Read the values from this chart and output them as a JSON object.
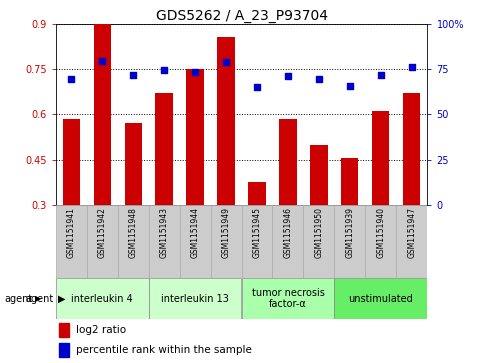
{
  "title": "GDS5262 / A_23_P93704",
  "samples": [
    "GSM1151941",
    "GSM1151942",
    "GSM1151948",
    "GSM1151943",
    "GSM1151944",
    "GSM1151949",
    "GSM1151945",
    "GSM1151946",
    "GSM1151950",
    "GSM1151939",
    "GSM1151940",
    "GSM1151947"
  ],
  "log2_ratio": [
    0.585,
    0.9,
    0.57,
    0.67,
    0.75,
    0.855,
    0.375,
    0.585,
    0.5,
    0.455,
    0.61,
    0.67
  ],
  "percentile": [
    0.695,
    0.795,
    0.715,
    0.745,
    0.735,
    0.79,
    0.65,
    0.71,
    0.695,
    0.655,
    0.715,
    0.76
  ],
  "bar_color": "#cc0000",
  "dot_color": "#0000cc",
  "ylim_left": [
    0.3,
    0.9
  ],
  "ylim_right": [
    0.0,
    1.0
  ],
  "yticks_left": [
    0.3,
    0.45,
    0.6,
    0.75,
    0.9
  ],
  "yticks_right": [
    0.0,
    0.25,
    0.5,
    0.75,
    1.0
  ],
  "ytick_labels_right": [
    "0",
    "25",
    "50",
    "75",
    "100%"
  ],
  "ytick_labels_left": [
    "0.3",
    "0.45",
    "0.6",
    "0.75",
    "0.9"
  ],
  "groups": [
    {
      "label": "interleukin 4",
      "start": 0,
      "end": 2,
      "color": "#ccffcc"
    },
    {
      "label": "interleukin 13",
      "start": 3,
      "end": 5,
      "color": "#ccffcc"
    },
    {
      "label": "tumor necrosis\nfactor-α",
      "start": 6,
      "end": 8,
      "color": "#aaffaa"
    },
    {
      "label": "unstimulated",
      "start": 9,
      "end": 11,
      "color": "#66ee66"
    }
  ],
  "bar_width": 0.55,
  "bar_color_hex": "#cc0000",
  "dot_color_hex": "#0000cc",
  "title_fontsize": 10,
  "tick_fontsize": 7,
  "sample_fontsize": 5.5,
  "group_fontsize": 7,
  "legend_fontsize": 7.5
}
